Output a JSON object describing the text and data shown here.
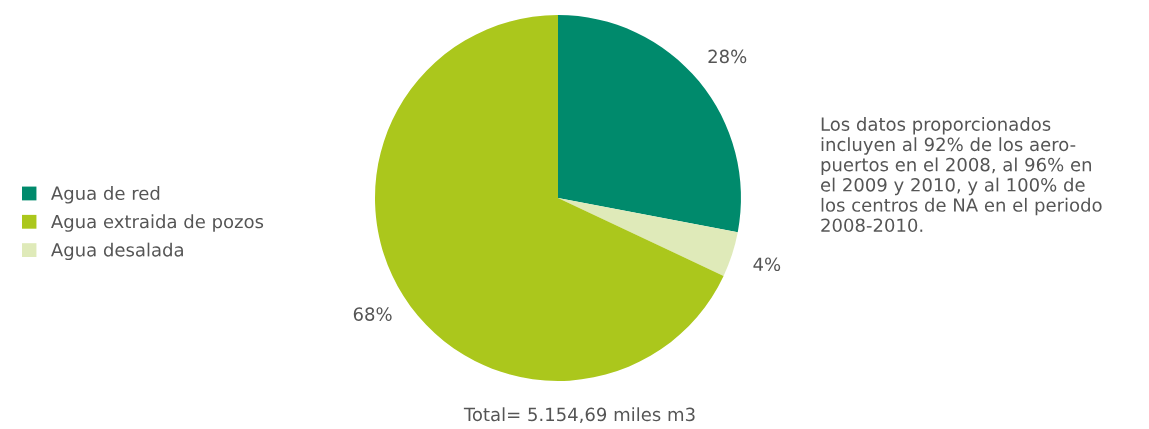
{
  "chart_data": {
    "type": "pie",
    "categories": [
      "Agua de red",
      "Agua extraida de pozos",
      "Agua desalada"
    ],
    "values": [
      28,
      68,
      4
    ],
    "colors": [
      "#008a6c",
      "#abc71c",
      "#dfeab9"
    ],
    "value_labels": [
      "28%",
      "68%",
      "4%"
    ],
    "legend": "left",
    "annotations": [
      "Los datos proporcionados\nincluyen al 92% de los aero-\npuertos en el 2008, al 96% en\nel 2009 y 2010, y al 100% de\nlos centros de NA en el periodo\n2008-2010.",
      "Total= 5.154,69 miles m3"
    ]
  }
}
